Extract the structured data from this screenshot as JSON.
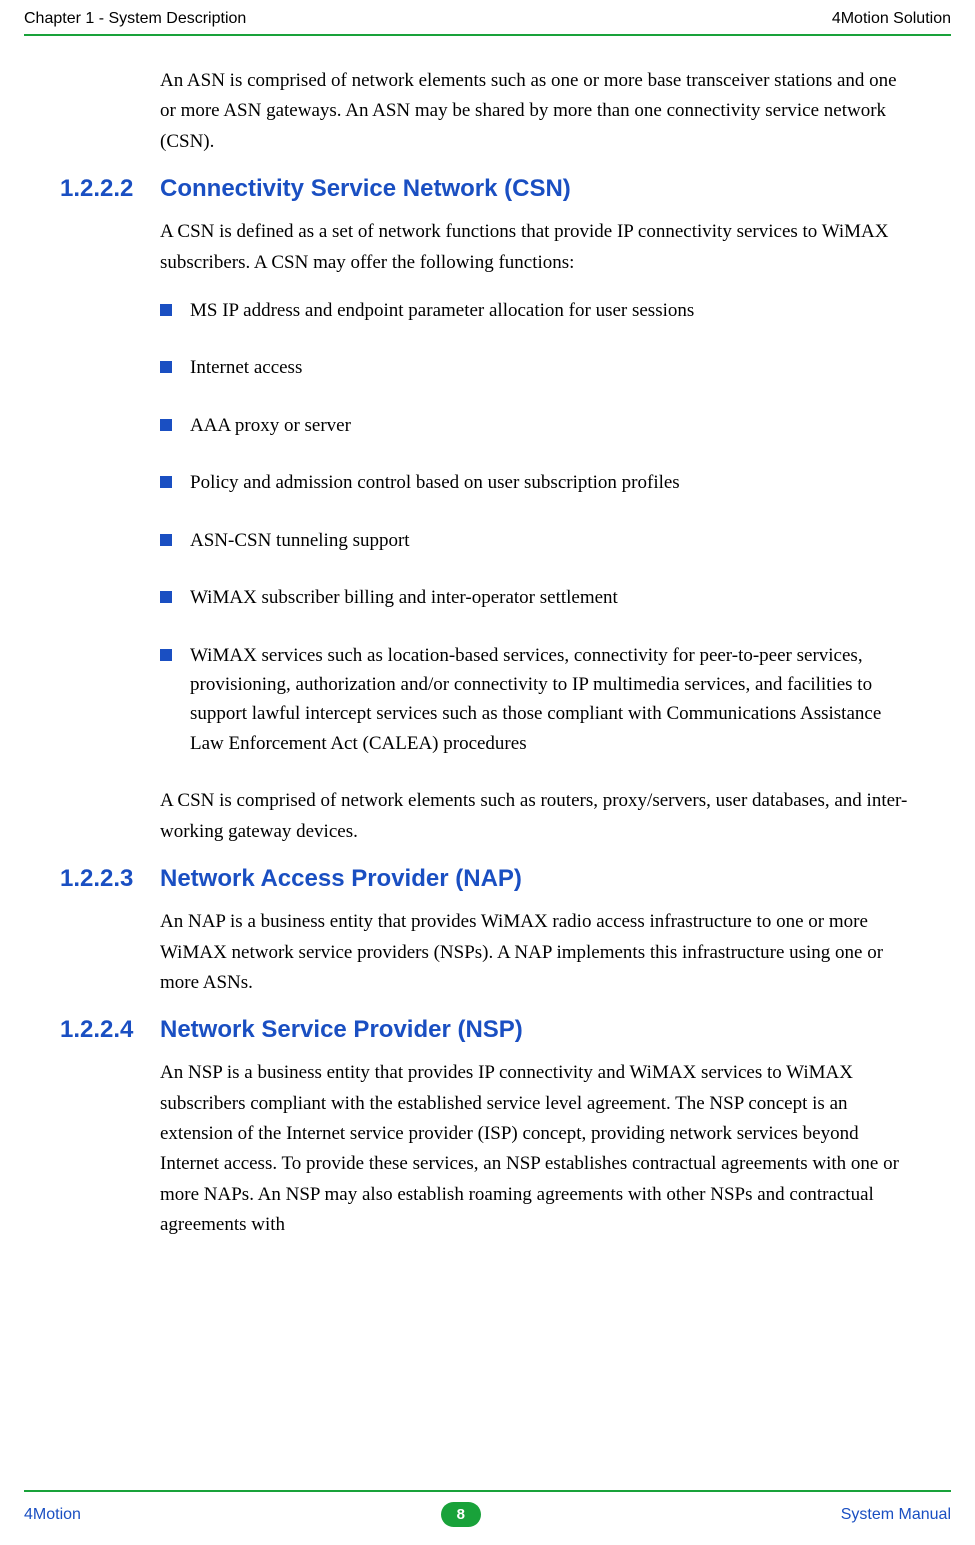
{
  "header": {
    "left": "Chapter 1 - System Description",
    "right": "4Motion Solution"
  },
  "intro_para": "An ASN is comprised of network elements such as one or more base transceiver stations and one or more ASN gateways. An ASN may be shared by more than one connectivity service network (CSN).",
  "sec_1222": {
    "num": "1.2.2.2",
    "title": "Connectivity Service Network (CSN)",
    "lead": "A CSN is defined as a set of network functions that provide IP connectivity services to WiMAX subscribers. A CSN may offer the following functions:",
    "bullets": {
      "b0": "MS IP address and endpoint parameter allocation for user sessions",
      "b1": "Internet access",
      "b2": "AAA proxy or server",
      "b3": "Policy and admission control based on user subscription profiles",
      "b4": "ASN-CSN tunneling support",
      "b5": "WiMAX subscriber billing and inter-operator settlement",
      "b6": "WiMAX services such as location-based services, connectivity for peer-to-peer services, provisioning, authorization and/or connectivity to IP multimedia services, and facilities to support lawful intercept services such as those compliant with Communications Assistance Law Enforcement Act (CALEA) procedures"
    },
    "tail": "A CSN is comprised of network elements such as routers, proxy/servers, user databases, and inter-working gateway devices."
  },
  "sec_1223": {
    "num": "1.2.2.3",
    "title": "Network Access Provider (NAP)",
    "body": "An NAP is a business entity that provides WiMAX radio access infrastructure to one or more WiMAX network service providers (NSPs). A NAP implements this infrastructure using one or more ASNs."
  },
  "sec_1224": {
    "num": "1.2.2.4",
    "title": "Network Service Provider (NSP)",
    "body": "An NSP is a business entity that provides IP connectivity and WiMAX services to WiMAX subscribers compliant with the established service level agreement. The NSP concept is an extension of the Internet service provider (ISP) concept, providing network services beyond Internet access. To provide these services, an NSP establishes contractual agreements with one or more NAPs. An NSP may also establish roaming agreements with other NSPs and contractual agreements with"
  },
  "footer": {
    "left": "4Motion",
    "page": "8",
    "right": "System Manual"
  },
  "colors": {
    "accent_blue": "#1a4fc2",
    "accent_green": "#19a23a",
    "text": "#000000",
    "background": "#ffffff"
  },
  "typography": {
    "body_font": "Georgia serif",
    "heading_font": "Arial sans-serif",
    "body_size_pt": 14,
    "heading_size_pt": 18
  }
}
